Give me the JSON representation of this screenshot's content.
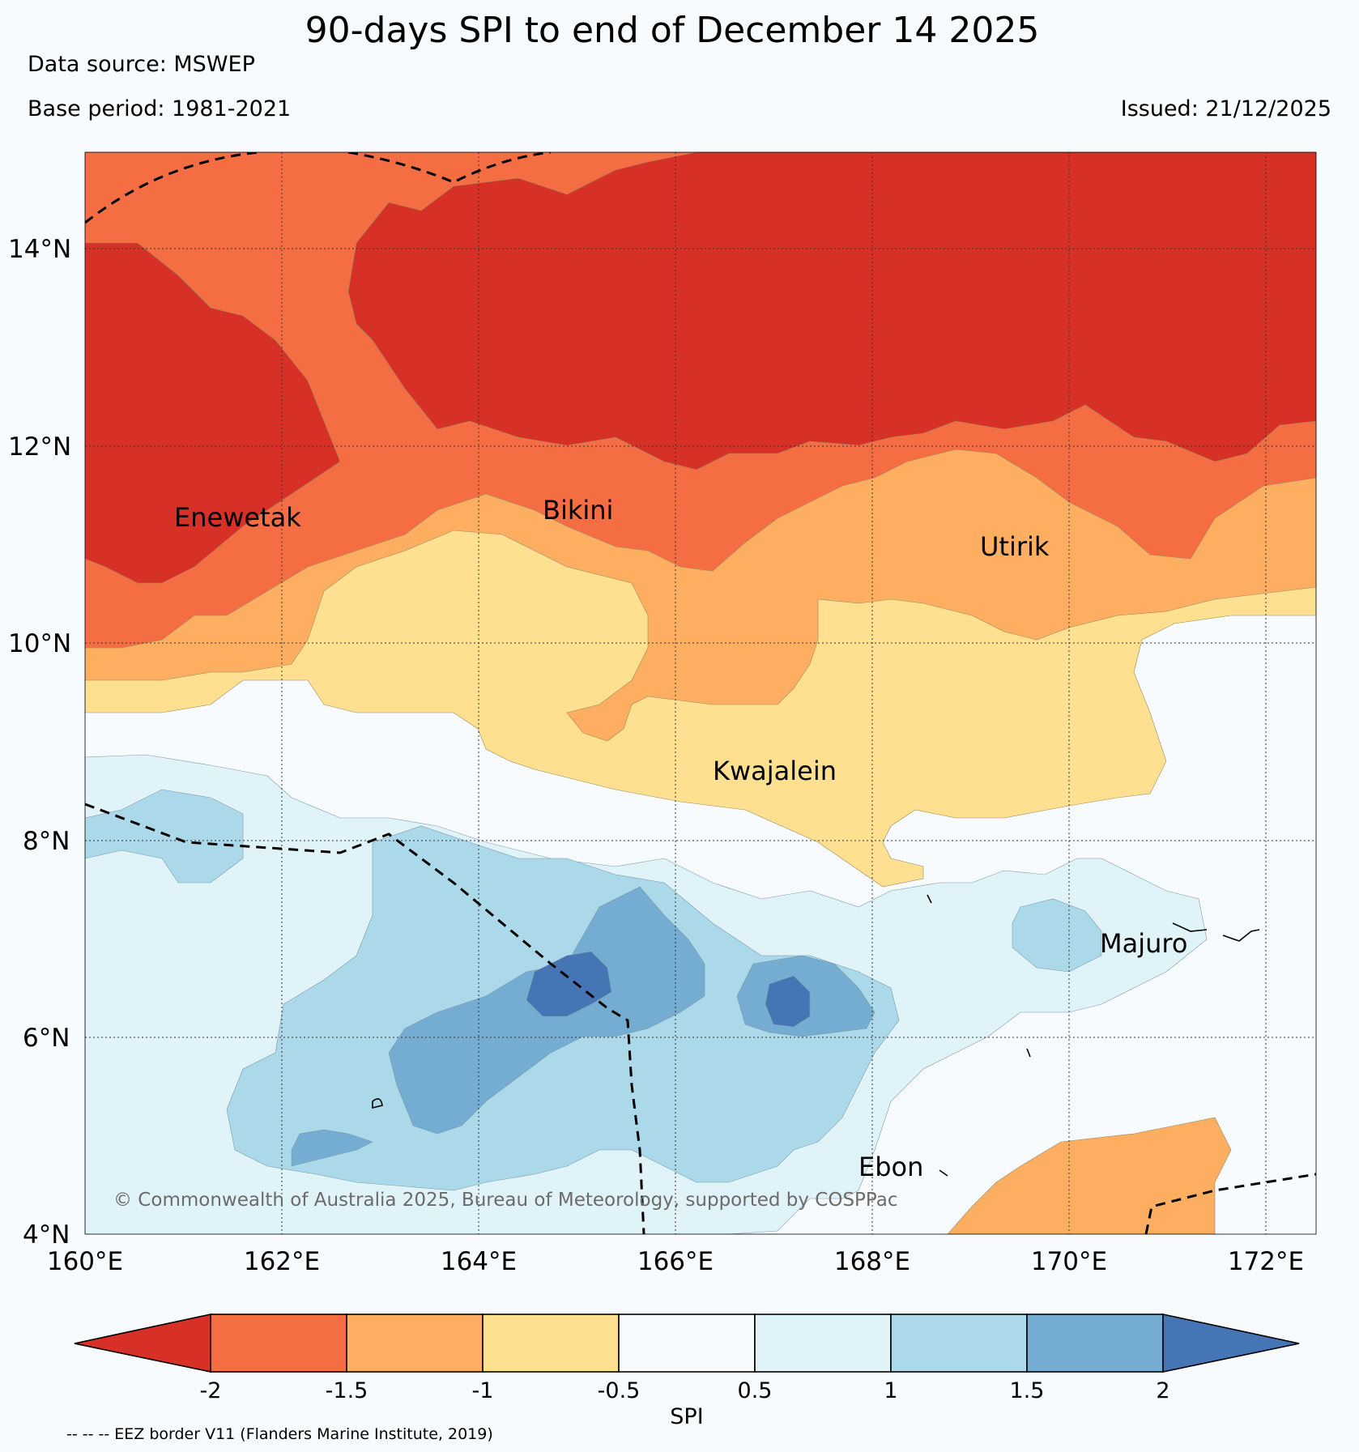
{
  "title": "90-days SPI to end of December 14 2025",
  "data_source": "Data source: MSWEP",
  "base_period": "Base period: 1981-2021",
  "issued": "Issued: 21/12/2025",
  "copyright": "© Commonwealth of Australia 2025, Bureau of Meteorology, supported by COSPPac",
  "eez_note": "-- -- -- EEZ border V11 (Flanders Marine Institute, 2019)",
  "axes": {
    "lat_labels": [
      "14°N",
      "12°N",
      "10°N",
      "8°N",
      "6°N",
      "4°N"
    ],
    "lon_labels": [
      "160°E",
      "162°E",
      "164°E",
      "166°E",
      "168°E",
      "170°E",
      "172°E"
    ]
  },
  "places": {
    "enewetak": "Enewetak",
    "bikini": "Bikini",
    "utirik": "Utirik",
    "kwajalein": "Kwajalein",
    "majuro": "Majuro",
    "ebon": "Ebon"
  },
  "colorbar": {
    "label": "SPI",
    "ticks": [
      "-2",
      "-1.5",
      "-1",
      "-0.5",
      "0.5",
      "1",
      "1.5",
      "2"
    ],
    "colors": [
      "#d73027",
      "#f46d43",
      "#fdae61",
      "#fee090",
      "#f7fbfd",
      "#e0f3f8",
      "#abd9e9",
      "#74add1",
      "#4575b4"
    ]
  }
}
